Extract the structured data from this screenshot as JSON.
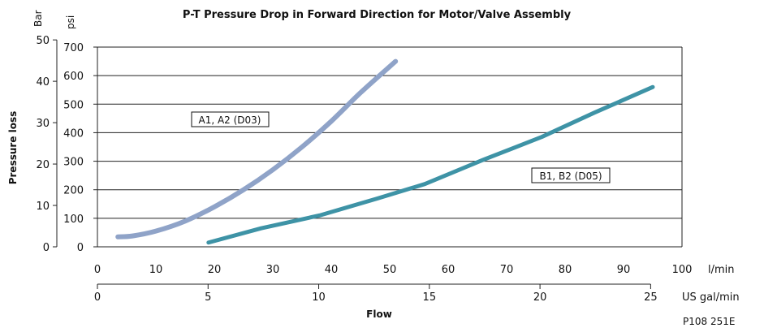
{
  "chart_data": {
    "type": "line",
    "title": "P-T Pressure Drop in Forward Direction for Motor/Valve Assembly",
    "ylabel": "Pressure loss",
    "xlabel": "Flow",
    "figure_code": "P108 251E",
    "y_axes": {
      "bar": {
        "unit": "Bar",
        "ticks": [
          0,
          10,
          20,
          30,
          40,
          50
        ]
      },
      "psi": {
        "unit": "psi",
        "ticks": [
          0,
          100,
          200,
          300,
          400,
          500,
          600,
          700
        ],
        "lim": [
          0,
          700
        ]
      }
    },
    "x_axes": {
      "lmin": {
        "unit": "l/min",
        "ticks": [
          0,
          10,
          20,
          30,
          40,
          50,
          60,
          70,
          80,
          90,
          100
        ],
        "lim": [
          0,
          100
        ]
      },
      "usgal": {
        "unit": "US gal/min",
        "ticks": [
          0,
          5,
          10,
          15,
          20,
          25
        ]
      }
    },
    "grid": true,
    "series": [
      {
        "name": "A1, A2 (D03)",
        "color": "#8FA3C8",
        "x": [
          3.5,
          6,
          10,
          15,
          20,
          25,
          30,
          35,
          40,
          45,
          51
        ],
        "y": [
          35,
          38,
          55,
          90,
          140,
          200,
          270,
          350,
          440,
          540,
          650
        ]
      },
      {
        "name": "B1, B2 (D05)",
        "color": "#3E93A6",
        "x": [
          19,
          28,
          38,
          48,
          56,
          66,
          76,
          85,
          95
        ],
        "y": [
          15,
          65,
          110,
          170,
          220,
          305,
          385,
          470,
          560
        ]
      }
    ]
  }
}
